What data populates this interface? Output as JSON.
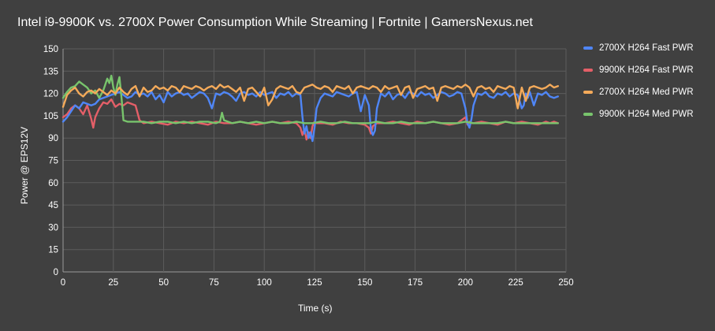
{
  "chart_data": {
    "type": "line",
    "title": "Intel i9-9900K vs. 2700X Power Consumption While Streaming | Fortnite | GamersNexus.net",
    "xlabel": "Time (s)",
    "ylabel": "Power @ EPS12V",
    "xlim": [
      0,
      250
    ],
    "ylim": [
      0,
      150
    ],
    "xticks": [
      0,
      25,
      50,
      75,
      100,
      125,
      150,
      175,
      200,
      225,
      250
    ],
    "yticks": [
      0,
      15,
      30,
      45,
      60,
      75,
      90,
      105,
      120,
      135,
      150
    ],
    "grid": true,
    "legend_position": "right",
    "series": [
      {
        "name": "2700X H264 Fast PWR",
        "color": "#4f86f7",
        "x": [
          0,
          2,
          4,
          6,
          8,
          10,
          12,
          14,
          16,
          18,
          20,
          22,
          24,
          26,
          28,
          30,
          32,
          34,
          36,
          38,
          40,
          42,
          44,
          46,
          48,
          50,
          52,
          54,
          56,
          58,
          60,
          62,
          64,
          66,
          68,
          70,
          72,
          74,
          76,
          78,
          80,
          82,
          84,
          86,
          88,
          90,
          92,
          94,
          96,
          98,
          100,
          102,
          104,
          106,
          108,
          110,
          112,
          114,
          116,
          118,
          119,
          120,
          121,
          122,
          123,
          124,
          125,
          126,
          128,
          130,
          132,
          134,
          136,
          138,
          140,
          142,
          144,
          146,
          148,
          150,
          152,
          153,
          154,
          155,
          156,
          158,
          160,
          162,
          164,
          166,
          168,
          170,
          172,
          174,
          176,
          178,
          180,
          182,
          184,
          186,
          188,
          190,
          192,
          194,
          196,
          198,
          200,
          201,
          202,
          203,
          204,
          206,
          208,
          210,
          212,
          214,
          216,
          218,
          220,
          222,
          224,
          226,
          228,
          229,
          230,
          231,
          232,
          234,
          236,
          238,
          240,
          242,
          244,
          246
        ],
        "values": [
          101,
          104,
          108,
          112,
          110,
          114,
          113,
          112,
          113,
          116,
          117,
          118,
          119,
          120,
          121,
          119,
          117,
          118,
          121,
          119,
          120,
          118,
          121,
          116,
          119,
          114,
          121,
          118,
          120,
          121,
          119,
          120,
          117,
          119,
          121,
          120,
          117,
          110,
          120,
          119,
          121,
          120,
          118,
          115,
          120,
          121,
          119,
          120,
          118,
          121,
          119,
          120,
          121,
          117,
          120,
          119,
          121,
          118,
          120,
          119,
          104,
          93,
          98,
          90,
          94,
          88,
          97,
          110,
          117,
          120,
          119,
          118,
          121,
          120,
          119,
          118,
          120,
          121,
          108,
          119,
          112,
          96,
          92,
          95,
          110,
          120,
          118,
          121,
          116,
          119,
          120,
          117,
          121,
          120,
          118,
          121,
          119,
          120,
          117,
          119,
          121,
          120,
          118,
          119,
          121,
          120,
          110,
          100,
          97,
          103,
          112,
          120,
          119,
          121,
          118,
          117,
          120,
          119,
          121,
          118,
          120,
          119,
          110,
          112,
          120,
          117,
          121,
          112,
          120,
          119,
          121,
          118,
          117,
          118
        ]
      },
      {
        "name": "9900K H264 Fast PWR",
        "color": "#e45f68",
        "x": [
          0,
          2,
          4,
          6,
          8,
          10,
          12,
          14,
          15,
          16,
          18,
          20,
          22,
          24,
          26,
          28,
          30,
          32,
          34,
          36,
          38,
          40,
          44,
          48,
          52,
          56,
          60,
          64,
          68,
          72,
          76,
          80,
          84,
          88,
          92,
          96,
          100,
          104,
          108,
          112,
          116,
          118,
          119,
          120,
          121,
          122,
          123,
          124,
          125,
          126,
          130,
          134,
          138,
          142,
          146,
          150,
          152,
          153,
          154,
          156,
          160,
          164,
          168,
          172,
          176,
          180,
          184,
          188,
          192,
          196,
          200,
          201,
          202,
          203,
          204,
          208,
          212,
          216,
          220,
          224,
          228,
          232,
          236,
          240,
          242,
          244,
          246
        ],
        "values": [
          104,
          106,
          110,
          112,
          110,
          106,
          112,
          103,
          97,
          104,
          110,
          114,
          113,
          116,
          111,
          113,
          112,
          114,
          113,
          112,
          102,
          100,
          101,
          100,
          99,
          101,
          100,
          101,
          100,
          99,
          101,
          100,
          100,
          101,
          100,
          99,
          100,
          101,
          100,
          101,
          100,
          97,
          92,
          96,
          89,
          94,
          90,
          98,
          101,
          100,
          100,
          99,
          101,
          100,
          100,
          99,
          97,
          93,
          98,
          100,
          100,
          101,
          100,
          99,
          101,
          100,
          101,
          100,
          99,
          100,
          104,
          99,
          101,
          100,
          100,
          101,
          100,
          99,
          101,
          100,
          101,
          100,
          99,
          101,
          100,
          101,
          100
        ]
      },
      {
        "name": "2700X H264 Med PWR",
        "color": "#f4aa5a",
        "x": [
          0,
          2,
          4,
          6,
          8,
          10,
          12,
          14,
          16,
          18,
          20,
          22,
          24,
          26,
          28,
          30,
          32,
          34,
          36,
          38,
          40,
          42,
          44,
          46,
          48,
          50,
          52,
          54,
          56,
          58,
          60,
          62,
          64,
          66,
          68,
          70,
          72,
          74,
          76,
          78,
          80,
          82,
          84,
          86,
          88,
          90,
          92,
          94,
          96,
          98,
          100,
          102,
          104,
          106,
          108,
          110,
          112,
          114,
          116,
          118,
          120,
          122,
          124,
          126,
          128,
          130,
          132,
          134,
          136,
          138,
          140,
          142,
          144,
          146,
          148,
          150,
          152,
          154,
          156,
          158,
          160,
          162,
          164,
          166,
          168,
          170,
          172,
          174,
          176,
          178,
          180,
          182,
          184,
          186,
          188,
          190,
          192,
          194,
          196,
          198,
          200,
          202,
          204,
          206,
          208,
          210,
          212,
          214,
          216,
          218,
          220,
          222,
          224,
          226,
          228,
          230,
          232,
          234,
          236,
          238,
          240,
          242,
          244,
          246
        ],
        "values": [
          111,
          119,
          122,
          124,
          120,
          118,
          121,
          122,
          120,
          123,
          121,
          119,
          122,
          120,
          124,
          121,
          119,
          123,
          125,
          118,
          124,
          121,
          122,
          125,
          123,
          124,
          122,
          125,
          124,
          121,
          125,
          124,
          123,
          125,
          124,
          122,
          124,
          125,
          123,
          126,
          124,
          125,
          123,
          121,
          124,
          115,
          123,
          124,
          121,
          118,
          124,
          112,
          116,
          123,
          125,
          124,
          123,
          125,
          121,
          120,
          124,
          125,
          126,
          124,
          123,
          125,
          124,
          121,
          125,
          124,
          123,
          125,
          120,
          124,
          125,
          124,
          123,
          125,
          124,
          121,
          125,
          123,
          124,
          125,
          119,
          124,
          125,
          117,
          123,
          124,
          125,
          123,
          124,
          115,
          124,
          125,
          124,
          123,
          125,
          124,
          126,
          124,
          118,
          124,
          125,
          123,
          124,
          121,
          125,
          124,
          123,
          125,
          124,
          110,
          124,
          115,
          124,
          125,
          124,
          123,
          124,
          126,
          124,
          125
        ]
      },
      {
        "name": "9900K H264 Med PWR",
        "color": "#78c46c",
        "x": [
          0,
          2,
          4,
          6,
          8,
          10,
          12,
          14,
          16,
          18,
          20,
          22,
          23,
          24,
          25,
          26,
          27,
          28,
          29,
          30,
          32,
          36,
          40,
          44,
          48,
          52,
          56,
          60,
          64,
          68,
          72,
          76,
          78,
          79,
          80,
          84,
          88,
          92,
          96,
          100,
          104,
          108,
          112,
          116,
          120,
          124,
          128,
          132,
          136,
          140,
          144,
          148,
          152,
          156,
          160,
          164,
          168,
          172,
          176,
          180,
          184,
          188,
          192,
          196,
          200,
          204,
          208,
          212,
          216,
          220,
          224,
          228,
          232,
          236,
          240,
          244,
          246
        ],
        "values": [
          117,
          121,
          124,
          125,
          128,
          126,
          124,
          120,
          122,
          117,
          122,
          130,
          127,
          132,
          124,
          119,
          126,
          131,
          118,
          102,
          101,
          101,
          101,
          100,
          101,
          101,
          100,
          101,
          100,
          101,
          101,
          100,
          101,
          107,
          102,
          100,
          101,
          100,
          101,
          100,
          101,
          100,
          100,
          101,
          100,
          100,
          101,
          100,
          100,
          101,
          100,
          100,
          100,
          101,
          100,
          100,
          101,
          100,
          100,
          100,
          101,
          100,
          100,
          100,
          101,
          100,
          100,
          100,
          100,
          101,
          100,
          100,
          100,
          100,
          100,
          100,
          100
        ]
      }
    ]
  }
}
